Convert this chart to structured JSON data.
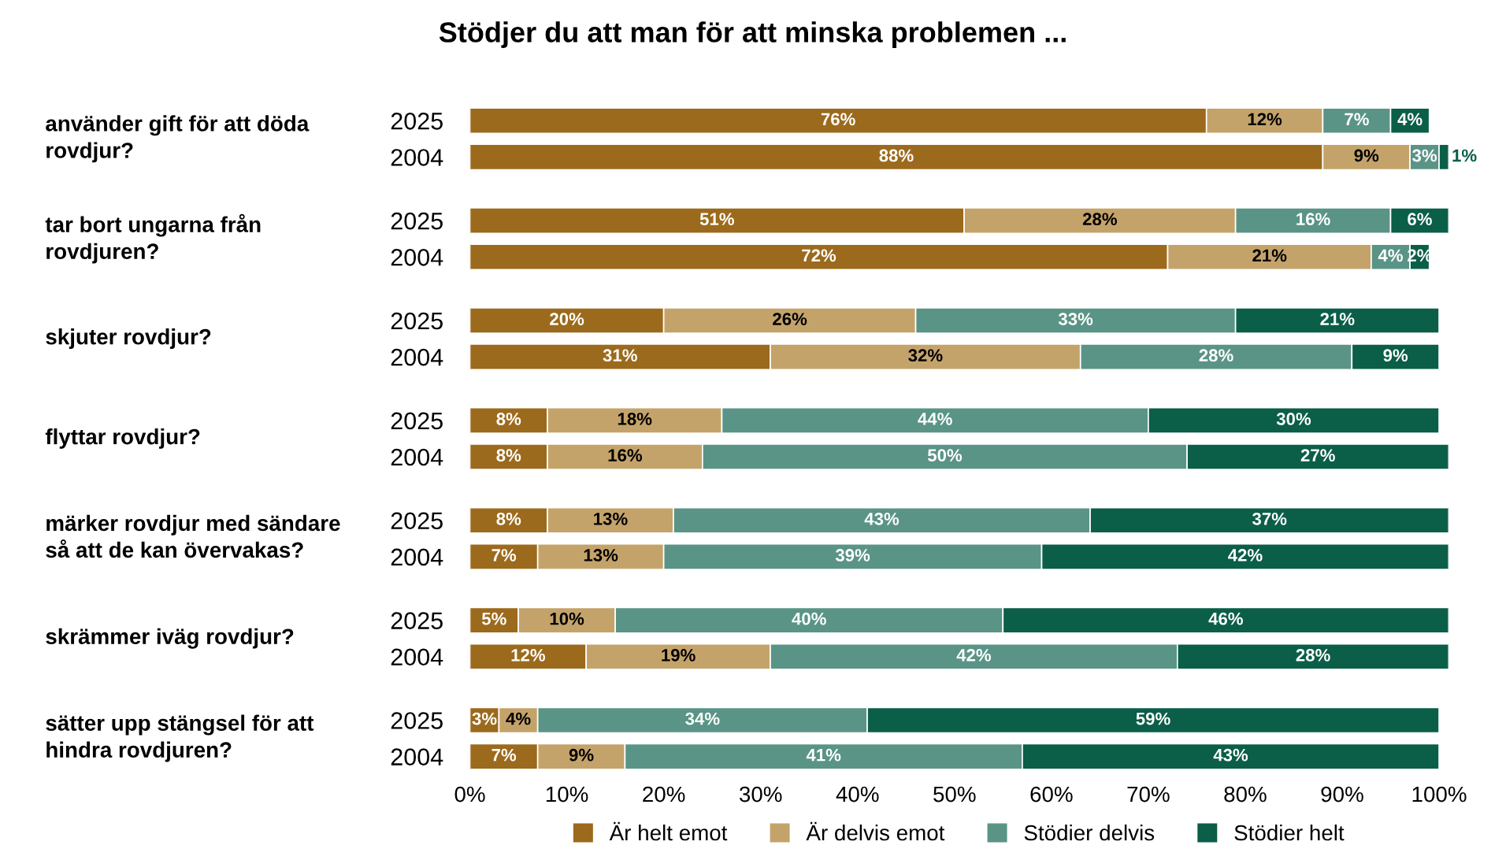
{
  "chart_data": {
    "type": "bar",
    "orientation": "horizontal",
    "stacked": true,
    "title": "Stödjer du att man för att minska problemen ...",
    "categories": [
      "2025",
      "2004",
      "2025",
      "2004",
      "2025",
      "2004",
      "2025",
      "2004",
      "2025",
      "2004",
      "2025",
      "2004",
      "2025",
      "2004"
    ],
    "series": [
      {
        "name": "Är helt emot",
        "color": "#9c6a1c",
        "values": [
          76,
          88,
          51,
          72,
          20,
          31,
          8,
          8,
          8,
          7,
          5,
          12,
          3,
          7
        ],
        "value_labels": [
          "76%",
          "88%",
          "51%",
          "72%",
          "20%",
          "31%",
          "8%",
          "8%",
          "8%",
          "7%",
          "5%",
          "12%",
          "3%",
          "7%"
        ]
      },
      {
        "name": "Är delvis emot",
        "color": "#c4a36b",
        "values": [
          12,
          9,
          28,
          21,
          26,
          32,
          18,
          16,
          13,
          13,
          10,
          19,
          4,
          9
        ],
        "value_labels": [
          "12%",
          "9%",
          "28%",
          "21%",
          "26%",
          "32%",
          "18%",
          "16%",
          "13%",
          "13%",
          "10%",
          "19%",
          "4%",
          "9%"
        ]
      },
      {
        "name": "Stödier delvis",
        "color": "#5a9486",
        "values": [
          7,
          3,
          16,
          4,
          33,
          28,
          44,
          50,
          43,
          39,
          40,
          42,
          34,
          41
        ],
        "value_labels": [
          "7%",
          "3%",
          "16%",
          "4%",
          "33%",
          "28%",
          "44%",
          "50%",
          "43%",
          "39%",
          "40%",
          "42%",
          "34%",
          "41%"
        ]
      },
      {
        "name": "Stödier helt",
        "color": "#0b5e48",
        "values": [
          4,
          1,
          6,
          2,
          21,
          9,
          30,
          27,
          37,
          42,
          46,
          28,
          59,
          43
        ],
        "value_labels": [
          "4%",
          "1%",
          "6%",
          "2%",
          "21%",
          "9%",
          "30%",
          "27%",
          "37%",
          "42%",
          "46%",
          "28%",
          "59%",
          "43%"
        ]
      }
    ],
    "annotations": [
      "använder gift för att döda\nrovdjur?",
      "tar bort ungarna från\nrovdjuren?",
      "skjuter rovdjur?",
      "flyttar rovdjur?",
      "märker rovdjur med sändare\nså att de kan övervakas?",
      "skrämmer iväg rovdjur?",
      "sätter upp stängsel för att\nhindra rovdjuren?"
    ],
    "xlim": [
      0,
      101
    ],
    "xticks": [
      {
        "value": 0,
        "label": "0%"
      },
      {
        "value": 10,
        "label": "10%"
      },
      {
        "value": 20,
        "label": "20%"
      },
      {
        "value": 30,
        "label": "30%"
      },
      {
        "value": 40,
        "label": "40%"
      },
      {
        "value": 50,
        "label": "50%"
      },
      {
        "value": 60,
        "label": "60%"
      },
      {
        "value": 70,
        "label": "70%"
      },
      {
        "value": 80,
        "label": "80%"
      },
      {
        "value": 90,
        "label": "90%"
      },
      {
        "value": 100,
        "label": "100%"
      }
    ],
    "legend": "bottom",
    "grid": false
  }
}
